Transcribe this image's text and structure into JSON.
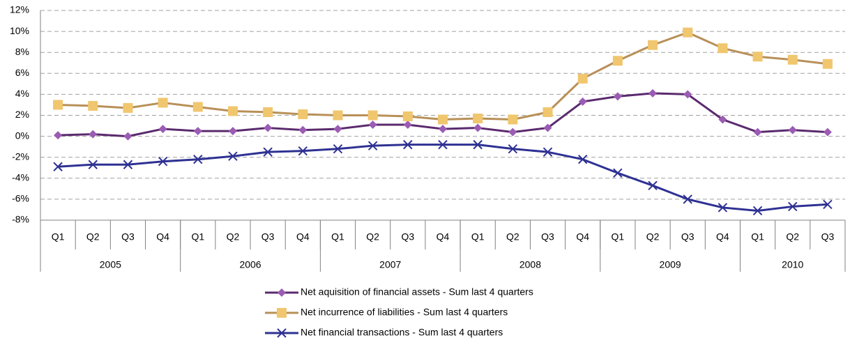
{
  "chart_data": {
    "type": "line",
    "category_groups": [
      {
        "name": "2005",
        "categories": [
          "Q1",
          "Q2",
          "Q3",
          "Q4"
        ]
      },
      {
        "name": "2006",
        "categories": [
          "Q1",
          "Q2",
          "Q3",
          "Q4"
        ]
      },
      {
        "name": "2007",
        "categories": [
          "Q1",
          "Q2",
          "Q3",
          "Q4"
        ]
      },
      {
        "name": "2008",
        "categories": [
          "Q1",
          "Q2",
          "Q3",
          "Q4"
        ]
      },
      {
        "name": "2009",
        "categories": [
          "Q1",
          "Q2",
          "Q3",
          "Q4"
        ]
      },
      {
        "name": "2010",
        "categories": [
          "Q1",
          "Q2",
          "Q3"
        ]
      }
    ],
    "series": [
      {
        "name": "Net aquisition of financial assets - Sum last 4 quarters",
        "color": "#5b2a6e",
        "marker_color": "#9b5cb4",
        "marker": "diamond",
        "values": [
          0.1,
          0.2,
          0.0,
          0.7,
          0.5,
          0.5,
          0.8,
          0.6,
          0.7,
          1.1,
          1.1,
          0.7,
          0.8,
          0.4,
          0.8,
          3.3,
          3.8,
          4.1,
          4.0,
          1.6,
          0.4,
          0.6,
          0.4
        ]
      },
      {
        "name": "Net incurrence of liabilities - Sum last 4 quarters",
        "color": "#b89058",
        "marker_color": "#f0c66e",
        "marker": "square",
        "values": [
          3.0,
          2.9,
          2.7,
          3.2,
          2.8,
          2.4,
          2.3,
          2.1,
          2.0,
          2.0,
          1.9,
          1.6,
          1.7,
          1.6,
          2.3,
          5.5,
          7.2,
          8.7,
          9.9,
          8.4,
          7.6,
          7.3,
          6.9
        ]
      },
      {
        "name": "Net financial transactions - Sum last 4 quarters",
        "color": "#2e3192",
        "marker_color": "#2e3192",
        "marker": "x",
        "values": [
          -2.9,
          -2.7,
          -2.7,
          -2.4,
          -2.2,
          -1.9,
          -1.5,
          -1.4,
          -1.2,
          -0.9,
          -0.8,
          -0.8,
          -0.8,
          -1.2,
          -1.5,
          -2.2,
          -3.5,
          -4.7,
          -6.0,
          -6.8,
          -7.1,
          -6.7,
          -6.5
        ]
      }
    ],
    "ylim": [
      -8,
      12
    ],
    "yticks": [
      {
        "value": -8,
        "label": "-8%"
      },
      {
        "value": -6,
        "label": "-6%"
      },
      {
        "value": -4,
        "label": "-4%"
      },
      {
        "value": -2,
        "label": "-2%"
      },
      {
        "value": 0,
        "label": "0%"
      },
      {
        "value": 2,
        "label": "2%"
      },
      {
        "value": 4,
        "label": "4%"
      },
      {
        "value": 6,
        "label": "6%"
      },
      {
        "value": 8,
        "label": "8%"
      },
      {
        "value": 10,
        "label": "10%"
      },
      {
        "value": 12,
        "label": "12%"
      }
    ],
    "grid": true,
    "legend": "bottom"
  }
}
